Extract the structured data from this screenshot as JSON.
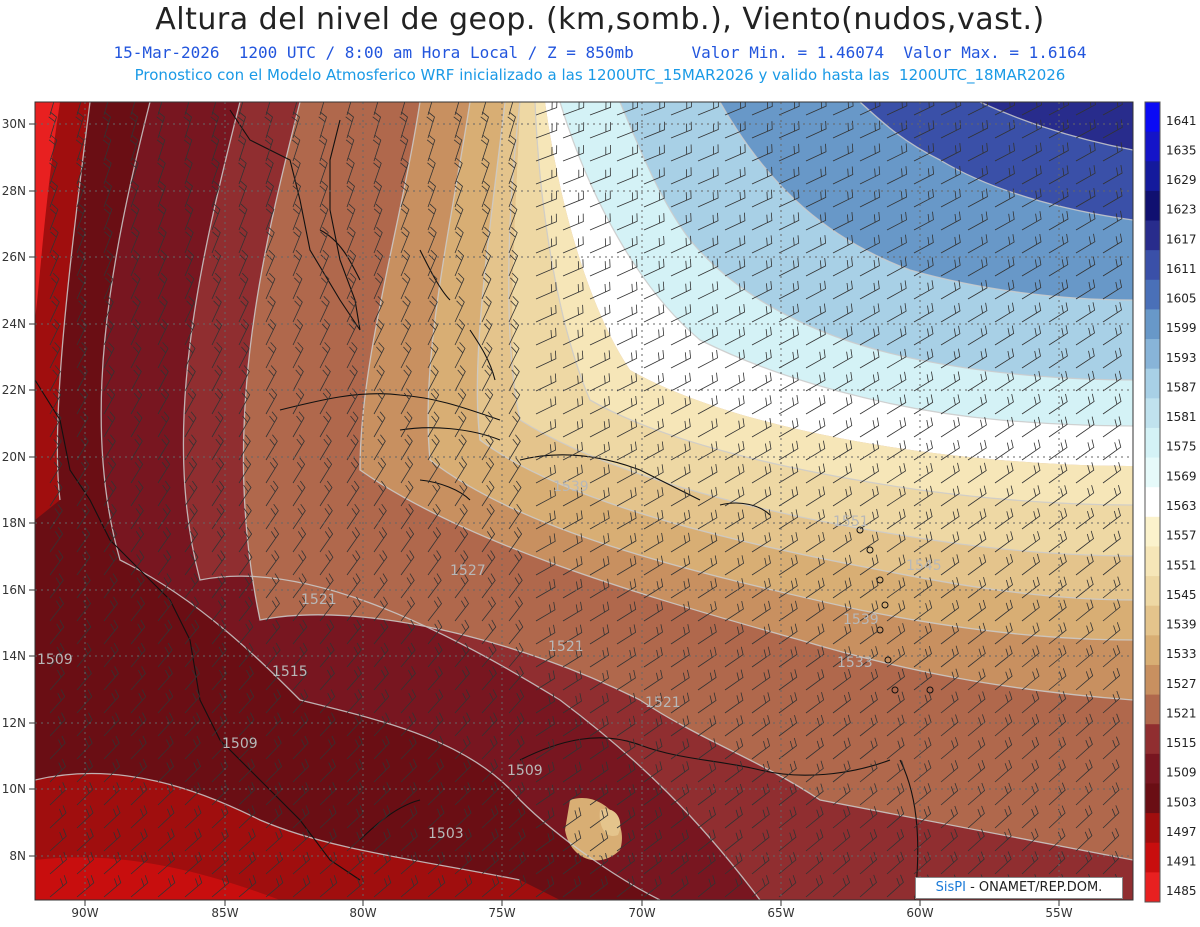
{
  "header": {
    "title": "Altura del nivel de geop. (km,somb.), Viento(nudos,vast.)",
    "subtitle_date": "15-Mar-2026  1200 UTC / 8:00 am Hora Local / Z = 850mb",
    "subtitle_range": "Valor Min. = 1.46074  Valor Max. = 1.6164",
    "subtitle_model": "Pronostico con el Modelo Atmosferico WRF inicializado a las 1200UTC_15MAR2026 y valido hasta las  1200UTC_18MAR2026"
  },
  "axes": {
    "lat_labels": [
      "30N",
      "28N",
      "26N",
      "24N",
      "22N",
      "20N",
      "18N",
      "16N",
      "14N",
      "12N",
      "10N",
      "8N"
    ],
    "lon_labels": [
      "90W",
      "85W",
      "80W",
      "75W",
      "70W",
      "65W",
      "60W",
      "55W"
    ]
  },
  "contour_labels": [
    "1551",
    "1545",
    "1539",
    "1533",
    "1527",
    "1521",
    "1521",
    "1515",
    "1509",
    "1509",
    "1509",
    "1503",
    "1539",
    "1521"
  ],
  "colorbar": {
    "labels": [
      "1641",
      "1635",
      "1629",
      "1623",
      "1617",
      "1611",
      "1605",
      "1599",
      "1593",
      "1587",
      "1581",
      "1575",
      "1569",
      "1563",
      "1557",
      "1551",
      "1545",
      "1539",
      "1533",
      "1527",
      "1521",
      "1515",
      "1509",
      "1503",
      "1497",
      "1491",
      "1485"
    ],
    "colors": [
      "#0a0af5",
      "#1414c8",
      "#141a9c",
      "#101070",
      "#282c8c",
      "#3a50a8",
      "#4a70b8",
      "#6898c8",
      "#88b4d8",
      "#a8d0e6",
      "#c0e2ee",
      "#d4f2f6",
      "#e6fafa",
      "#ffffff",
      "#fbf2cc",
      "#f6e6b8",
      "#eed8a4",
      "#e4c48c",
      "#d8ae74",
      "#c89060",
      "#b0684c",
      "#902e30",
      "#781620",
      "#6a0e14",
      "#a00e0e",
      "#c80e0e",
      "#e82020"
    ]
  },
  "colors": {
    "title": "#222222",
    "subtitle_date": "#2255dd",
    "subtitle_model": "#1a9ae6"
  },
  "credit": {
    "brand": "SisPI",
    "org": "- ONAMET/REP.DOM."
  }
}
